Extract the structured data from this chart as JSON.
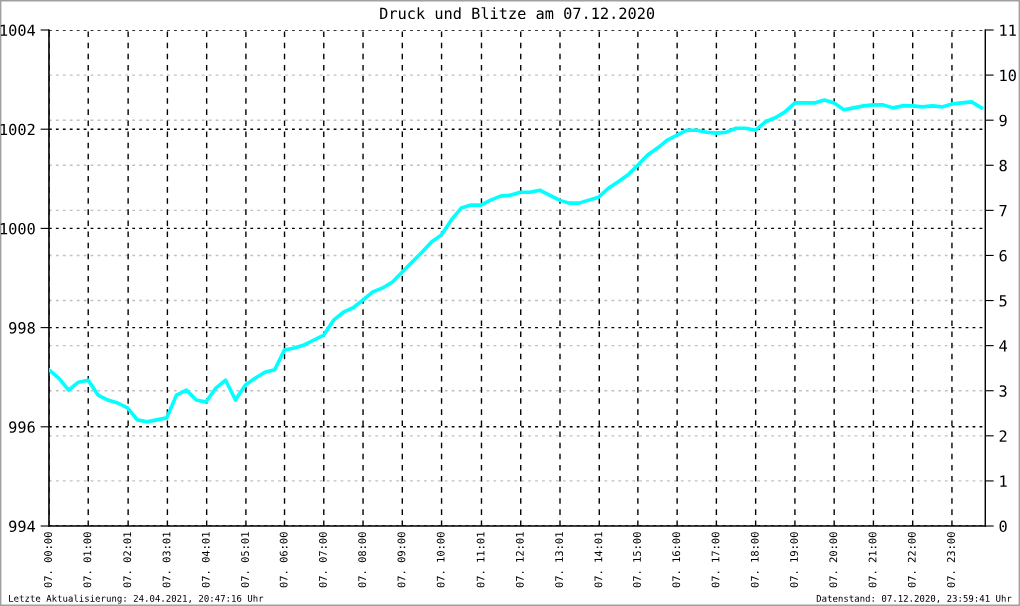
{
  "chart_data": {
    "type": "line",
    "title": "Druck und Blitze am 07.12.2020",
    "x": [
      "2020-12-07T00:00",
      "2020-12-07T00:15",
      "2020-12-07T00:30",
      "2020-12-07T00:45",
      "2020-12-07T01:00",
      "2020-12-07T01:15",
      "2020-12-07T01:30",
      "2020-12-07T01:45",
      "2020-12-07T02:00",
      "2020-12-07T02:15",
      "2020-12-07T02:30",
      "2020-12-07T02:45",
      "2020-12-07T03:00",
      "2020-12-07T03:15",
      "2020-12-07T03:30",
      "2020-12-07T03:45",
      "2020-12-07T04:00",
      "2020-12-07T04:15",
      "2020-12-07T04:30",
      "2020-12-07T04:45",
      "2020-12-07T05:00",
      "2020-12-07T05:15",
      "2020-12-07T05:30",
      "2020-12-07T05:45",
      "2020-12-07T06:00",
      "2020-12-07T06:15",
      "2020-12-07T06:30",
      "2020-12-07T06:45",
      "2020-12-07T07:00",
      "2020-12-07T07:15",
      "2020-12-07T07:30",
      "2020-12-07T07:45",
      "2020-12-07T08:00",
      "2020-12-07T08:15",
      "2020-12-07T08:30",
      "2020-12-07T08:45",
      "2020-12-07T09:00",
      "2020-12-07T09:15",
      "2020-12-07T09:30",
      "2020-12-07T09:45",
      "2020-12-07T10:00",
      "2020-12-07T10:15",
      "2020-12-07T10:30",
      "2020-12-07T10:45",
      "2020-12-07T11:00",
      "2020-12-07T11:15",
      "2020-12-07T11:30",
      "2020-12-07T11:45",
      "2020-12-07T12:00",
      "2020-12-07T12:15",
      "2020-12-07T12:30",
      "2020-12-07T12:45",
      "2020-12-07T13:00",
      "2020-12-07T13:15",
      "2020-12-07T13:30",
      "2020-12-07T13:45",
      "2020-12-07T14:00",
      "2020-12-07T14:15",
      "2020-12-07T14:30",
      "2020-12-07T14:45",
      "2020-12-07T15:00",
      "2020-12-07T15:15",
      "2020-12-07T15:30",
      "2020-12-07T15:45",
      "2020-12-07T16:00",
      "2020-12-07T16:15",
      "2020-12-07T16:30",
      "2020-12-07T16:45",
      "2020-12-07T17:00",
      "2020-12-07T17:15",
      "2020-12-07T17:30",
      "2020-12-07T17:45",
      "2020-12-07T18:00",
      "2020-12-07T18:15",
      "2020-12-07T18:30",
      "2020-12-07T18:45",
      "2020-12-07T19:00",
      "2020-12-07T19:15",
      "2020-12-07T19:30",
      "2020-12-07T19:45",
      "2020-12-07T20:00",
      "2020-12-07T20:15",
      "2020-12-07T20:30",
      "2020-12-07T20:45",
      "2020-12-07T21:00",
      "2020-12-07T21:15",
      "2020-12-07T21:30",
      "2020-12-07T21:45",
      "2020-12-07T22:00",
      "2020-12-07T22:15",
      "2020-12-07T22:30",
      "2020-12-07T22:45",
      "2020-12-07T23:00",
      "2020-12-07T23:15",
      "2020-12-07T23:30",
      "2020-12-07T23:45"
    ],
    "series": [
      {
        "color": "#00ffff",
        "values": [
          997.15,
          996.98,
          996.74,
          996.9,
          996.94,
          996.64,
          996.54,
          996.48,
          996.38,
          996.14,
          996.1,
          996.14,
          996.18,
          996.64,
          996.74,
          996.54,
          996.5,
          996.78,
          996.94,
          996.54,
          996.84,
          996.98,
          997.1,
          997.15,
          997.55,
          997.59,
          997.65,
          997.75,
          997.85,
          998.15,
          998.31,
          998.4,
          998.56,
          998.72,
          998.8,
          998.92,
          999.12,
          999.32,
          999.52,
          999.73,
          999.87,
          1000.17,
          1000.41,
          1000.47,
          1000.47,
          1000.57,
          1000.65,
          1000.67,
          1000.73,
          1000.73,
          1000.77,
          1000.67,
          1000.57,
          1000.51,
          1000.51,
          1000.57,
          1000.63,
          1000.81,
          1000.94,
          1001.08,
          1001.28,
          1001.48,
          1001.62,
          1001.78,
          1001.88,
          1001.98,
          1001.98,
          1001.94,
          1001.92,
          1001.94,
          1002.02,
          1002.02,
          1001.98,
          1002.15,
          1002.23,
          1002.35,
          1002.53,
          1002.53,
          1002.53,
          1002.59,
          1002.53,
          1002.39,
          1002.43,
          1002.47,
          1002.49,
          1002.49,
          1002.43,
          1002.47,
          1002.47,
          1002.45,
          1002.47,
          1002.45,
          1002.51,
          1002.53,
          1002.55,
          1002.43
        ]
      }
    ],
    "xlim": [
      "2020-12-07T00:00",
      "2020-12-07T23:51"
    ],
    "xticks": [
      {
        "value": "2020-12-07T00:00",
        "label": "07. 00:00"
      },
      {
        "value": "2020-12-07T01:00",
        "label": "07. 01:00"
      },
      {
        "value": "2020-12-07T02:01",
        "label": "07. 02:01"
      },
      {
        "value": "2020-12-07T03:01",
        "label": "07. 03:01"
      },
      {
        "value": "2020-12-07T04:01",
        "label": "07. 04:01"
      },
      {
        "value": "2020-12-07T05:01",
        "label": "07. 05:01"
      },
      {
        "value": "2020-12-07T06:00",
        "label": "07. 06:00"
      },
      {
        "value": "2020-12-07T07:00",
        "label": "07. 07:00"
      },
      {
        "value": "2020-12-07T08:00",
        "label": "07. 08:00"
      },
      {
        "value": "2020-12-07T09:00",
        "label": "07. 09:00"
      },
      {
        "value": "2020-12-07T10:00",
        "label": "07. 10:00"
      },
      {
        "value": "2020-12-07T11:01",
        "label": "07. 11:01"
      },
      {
        "value": "2020-12-07T12:01",
        "label": "07. 12:01"
      },
      {
        "value": "2020-12-07T13:01",
        "label": "07. 13:01"
      },
      {
        "value": "2020-12-07T14:01",
        "label": "07. 14:01"
      },
      {
        "value": "2020-12-07T15:00",
        "label": "07. 15:00"
      },
      {
        "value": "2020-12-07T16:00",
        "label": "07. 16:00"
      },
      {
        "value": "2020-12-07T17:00",
        "label": "07. 17:00"
      },
      {
        "value": "2020-12-07T18:00",
        "label": "07. 18:00"
      },
      {
        "value": "2020-12-07T19:00",
        "label": "07. 19:00"
      },
      {
        "value": "2020-12-07T20:00",
        "label": "07. 20:00"
      },
      {
        "value": "2020-12-07T21:00",
        "label": "07. 21:00"
      },
      {
        "value": "2020-12-07T22:00",
        "label": "07. 22:00"
      },
      {
        "value": "2020-12-07T23:00",
        "label": "07. 23:00"
      }
    ],
    "ylim": [
      994,
      1004
    ],
    "yticks": [
      994,
      996,
      998,
      1000,
      1002,
      1004
    ],
    "y2lim": [
      0,
      11
    ],
    "y2ticks": [
      0,
      1,
      2,
      3,
      4,
      5,
      6,
      7,
      8,
      9,
      10,
      11
    ],
    "grid": true,
    "marker": "none",
    "line_style": "solid",
    "annotations": [
      "Letzte Aktualisierung: 24.04.2021, 20:47:16 Uhr",
      "Datenstand: 07.12.2020, 23:59:41 Uhr"
    ]
  }
}
